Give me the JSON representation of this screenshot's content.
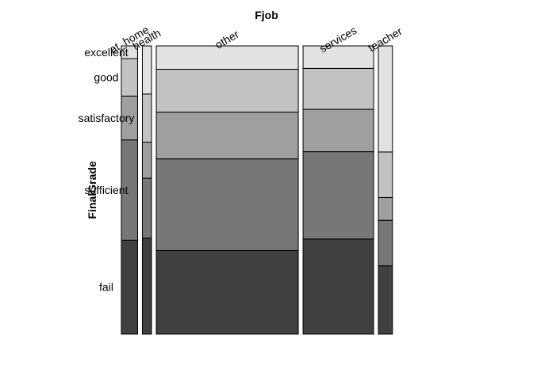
{
  "chart_data": {
    "type": "mosaic",
    "title": "",
    "x_variable": "Fjob",
    "y_variable": "FinalGrade",
    "x_categories": [
      "at_home",
      "health",
      "other",
      "services",
      "teacher"
    ],
    "y_levels": [
      "fail",
      "sufficient",
      "satisfactory",
      "good",
      "excellent"
    ],
    "column_proportions": [
      0.06,
      0.034,
      0.525,
      0.261,
      0.052
    ],
    "conditional_proportions": {
      "at_home": {
        "fail": 0.326,
        "sufficient": 0.348,
        "satisfactory": 0.152,
        "good": 0.13,
        "excellent": 0.044
      },
      "health": {
        "fail": 0.333,
        "sufficient": 0.208,
        "satisfactory": 0.125,
        "good": 0.167,
        "excellent": 0.167
      },
      "other": {
        "fail": 0.29,
        "sufficient": 0.318,
        "satisfactory": 0.162,
        "good": 0.149,
        "excellent": 0.081
      },
      "services": {
        "fail": 0.33,
        "sufficient": 0.303,
        "satisfactory": 0.147,
        "good": 0.142,
        "excellent": 0.078
      },
      "teacher": {
        "fail": 0.237,
        "sufficient": 0.158,
        "satisfactory": 0.079,
        "good": 0.158,
        "excellent": 0.368
      }
    },
    "fill_colors": {
      "fail": "#404040",
      "sufficient": "#777777",
      "satisfactory": "#9f9f9f",
      "good": "#c2c2c2",
      "excellent": "#e2e2e2"
    },
    "grid": false,
    "legend": "none"
  }
}
